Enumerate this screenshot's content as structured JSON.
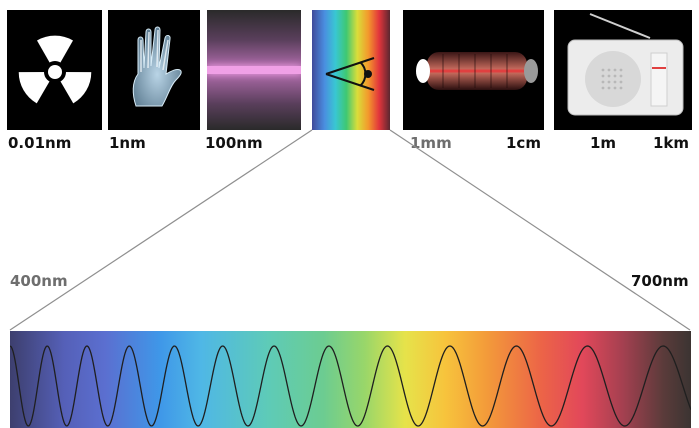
{
  "scale_labels": [
    "0.01nm",
    "1nm",
    "100nm",
    "1mm",
    "1cm",
    "1m",
    "1km"
  ],
  "visible_range": {
    "start_label": "400nm",
    "end_label": "700nm"
  },
  "panels": [
    {
      "icon": "radiation-trefoil-icon"
    },
    {
      "icon": "xray-hand-icon"
    },
    {
      "icon": "ultraviolet-band-icon"
    },
    {
      "icon": "eye-icon"
    },
    {
      "icon": "infrared-heater-icon"
    },
    {
      "icon": "radio-icon"
    }
  ],
  "colors": {
    "panel_dark": "#000000",
    "uv_band": "#f0a0e6",
    "heater_coil": "#e04040"
  }
}
